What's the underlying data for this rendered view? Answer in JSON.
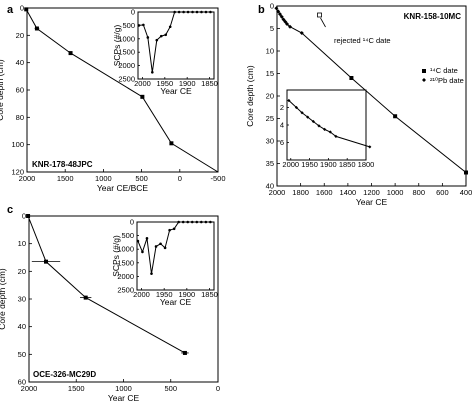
{
  "chart_data": [
    {
      "panel": "a",
      "type": "line",
      "core": "KNR-178-48JPC",
      "xlabel": "Year CE/BCE",
      "ylabel": "Core depth (cm)",
      "xlim": [
        2000,
        -500
      ],
      "ylim": [
        0,
        120
      ],
      "xticks": [
        2000,
        1500,
        1000,
        500,
        0,
        -500
      ],
      "yticks": [
        0,
        20,
        40,
        60,
        80,
        100,
        120
      ],
      "series": [
        {
          "x": [
            2010,
            1870,
            1430,
            490,
            110,
            -500
          ],
          "y": [
            1,
            15,
            33,
            65,
            99,
            120
          ],
          "xerr": [
            0,
            30,
            0,
            20,
            20,
            0
          ],
          "marker": [
            true,
            true,
            true,
            true,
            true,
            false
          ]
        }
      ],
      "inset": {
        "xlabel": "Year CE",
        "ylabel": "SCPs (#/g)",
        "xlim": [
          2010,
          1840
        ],
        "ylim": [
          0,
          2500
        ],
        "xticks": [
          2000,
          1950,
          1900,
          1850
        ],
        "yticks": [
          0,
          500,
          1000,
          1500,
          2000,
          2500
        ],
        "x": [
          2008,
          1998,
          1988,
          1978,
          1968,
          1958,
          1948,
          1938,
          1928,
          1918,
          1908,
          1898,
          1888,
          1878,
          1868,
          1858,
          1848
        ],
        "y": [
          500,
          480,
          950,
          2250,
          1050,
          900,
          850,
          550,
          0,
          0,
          0,
          0,
          0,
          0,
          0,
          0,
          0
        ]
      }
    },
    {
      "panel": "b",
      "type": "line",
      "core": "KNR-158-10MC",
      "xlabel": "Year CE",
      "ylabel": "Core depth (cm)",
      "xlim": [
        2000,
        400
      ],
      "ylim": [
        0,
        40
      ],
      "xticks": [
        2000,
        1800,
        1600,
        1400,
        1200,
        1000,
        800,
        600,
        400
      ],
      "yticks": [
        0,
        5,
        10,
        15,
        20,
        25,
        30,
        35,
        40
      ],
      "legend": [
        "¹⁴C date",
        "²¹⁰Pb date"
      ],
      "annotation": "rejected ¹⁴C date",
      "rejected_point": {
        "x": 1640,
        "y": 2
      },
      "series": [
        {
          "name": "¹⁴C date",
          "x": [
            1370,
            1000,
            400
          ],
          "y": [
            16,
            24.5,
            37
          ]
        },
        {
          "name": "²¹⁰Pb date",
          "x": [
            2005,
            1990,
            1975,
            1960,
            1945,
            1930,
            1915,
            1890,
            1790
          ],
          "y": [
            0.5,
            1.2,
            1.8,
            2.4,
            3,
            3.5,
            4,
            4.6,
            6
          ]
        }
      ],
      "inset": {
        "xlim": [
          2010,
          1800
        ],
        "ylim": [
          0,
          8
        ],
        "xticks": [
          2000,
          1950,
          1900,
          1850,
          1800
        ],
        "yticks": [
          2,
          4,
          6
        ],
        "x": [
          2005,
          1985,
          1970,
          1955,
          1940,
          1925,
          1910,
          1895,
          1880,
          1790
        ],
        "y": [
          1.2,
          2.0,
          2.6,
          3.1,
          3.6,
          4.1,
          4.5,
          4.8,
          5.3,
          6.5
        ]
      }
    },
    {
      "panel": "c",
      "type": "line",
      "core": "OCE-326-MC29D",
      "xlabel": "Year CE",
      "ylabel": "Core depth (cm)",
      "xlim": [
        2000,
        0
      ],
      "ylim": [
        0,
        60
      ],
      "xticks": [
        2000,
        1500,
        1000,
        500,
        0
      ],
      "yticks": [
        0,
        10,
        20,
        30,
        40,
        50,
        60
      ],
      "series": [
        {
          "x": [
            2010,
            1820,
            1400,
            350
          ],
          "y": [
            0,
            16.5,
            29.5,
            49.5
          ],
          "xerr": [
            0,
            150,
            60,
            40
          ]
        }
      ],
      "inset": {
        "xlabel": "Year CE",
        "ylabel": "SCPs (#/g)",
        "xlim": [
          2010,
          1840
        ],
        "ylim": [
          0,
          2500
        ],
        "xticks": [
          2000,
          1950,
          1900,
          1850
        ],
        "yticks": [
          0,
          500,
          1000,
          1500,
          2000,
          2500
        ],
        "x": [
          2008,
          1998,
          1988,
          1978,
          1968,
          1958,
          1948,
          1938,
          1928,
          1918,
          1908,
          1898,
          1888,
          1878,
          1868,
          1858,
          1848
        ],
        "y": [
          700,
          1100,
          600,
          1900,
          900,
          800,
          950,
          300,
          250,
          0,
          0,
          0,
          0,
          0,
          0,
          0,
          0
        ]
      }
    }
  ]
}
